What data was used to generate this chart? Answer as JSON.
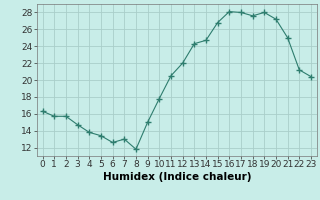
{
  "x": [
    0,
    1,
    2,
    3,
    4,
    5,
    6,
    7,
    8,
    9,
    10,
    11,
    12,
    13,
    14,
    15,
    16,
    17,
    18,
    19,
    20,
    21,
    22,
    23
  ],
  "y": [
    16.3,
    15.7,
    15.7,
    14.7,
    13.8,
    13.4,
    12.6,
    13.0,
    11.8,
    15.0,
    17.8,
    20.5,
    22.0,
    24.3,
    24.7,
    26.8,
    28.1,
    28.0,
    27.6,
    28.0,
    27.2,
    25.0,
    21.2,
    20.4
  ],
  "line_color": "#2e7d6e",
  "marker": "+",
  "marker_size": 4,
  "bg_color": "#c8ede8",
  "grid_color": "#aaceca",
  "xlabel": "Humidex (Indice chaleur)",
  "xlim": [
    -0.5,
    23.5
  ],
  "ylim": [
    11,
    29
  ],
  "yticks": [
    12,
    14,
    16,
    18,
    20,
    22,
    24,
    26,
    28
  ],
  "xtick_labels": [
    "0",
    "1",
    "2",
    "3",
    "4",
    "5",
    "6",
    "7",
    "8",
    "9",
    "10",
    "11",
    "12",
    "13",
    "14",
    "15",
    "16",
    "17",
    "18",
    "19",
    "20",
    "21",
    "22",
    "23"
  ],
  "xlabel_fontsize": 7.5,
  "tick_fontsize": 6.5
}
